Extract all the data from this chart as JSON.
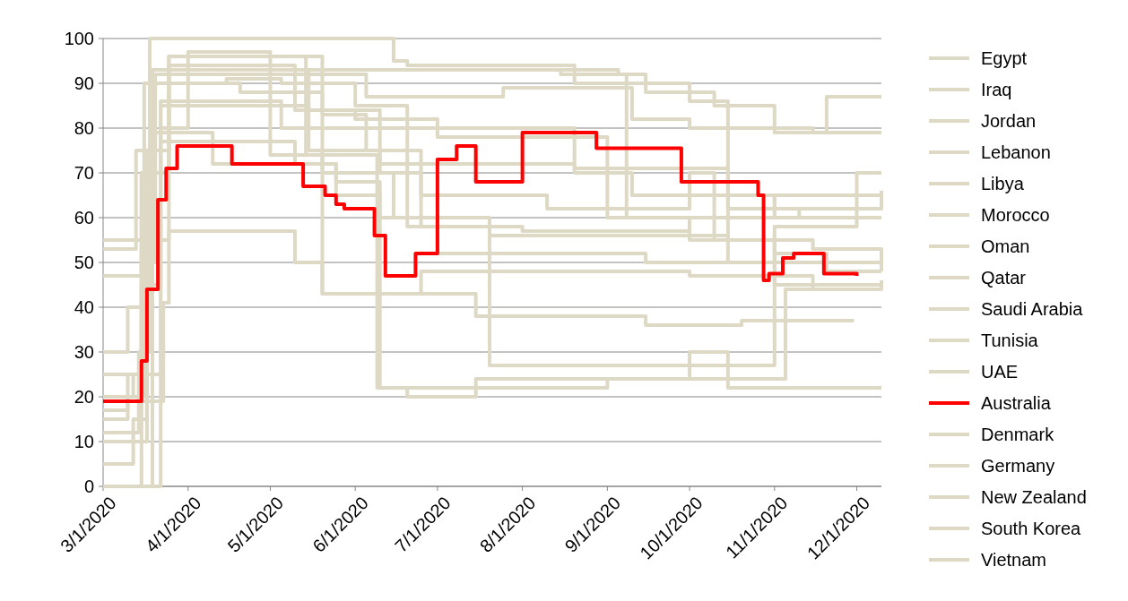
{
  "chart_data": {
    "type": "step",
    "xlim": [
      "2020-03-01",
      "2020-12-10"
    ],
    "ylim": [
      0,
      100
    ],
    "yticks": [
      0,
      10,
      20,
      30,
      40,
      50,
      60,
      70,
      80,
      90,
      100
    ],
    "xticks": [
      {
        "value": "2020-03-01",
        "label": "3/1/2020"
      },
      {
        "value": "2020-04-01",
        "label": "4/1/2020"
      },
      {
        "value": "2020-05-01",
        "label": "5/1/2020"
      },
      {
        "value": "2020-06-01",
        "label": "6/1/2020"
      },
      {
        "value": "2020-07-01",
        "label": "7/1/2020"
      },
      {
        "value": "2020-08-01",
        "label": "8/1/2020"
      },
      {
        "value": "2020-09-01",
        "label": "9/1/2020"
      },
      {
        "value": "2020-10-01",
        "label": "10/1/2020"
      },
      {
        "value": "2020-11-01",
        "label": "11/1/2020"
      },
      {
        "value": "2020-12-01",
        "label": "12/1/2020"
      }
    ],
    "grid": "y",
    "legend": "right",
    "marker": "none",
    "line_style": "solid",
    "series": [
      {
        "name": "Egypt",
        "color": "#ddd9c4",
        "x": [
          "2020-03-01",
          "2020-03-20",
          "2020-03-22",
          "2020-04-10",
          "2020-05-15",
          "2020-06-10",
          "2020-07-05",
          "2020-08-20",
          "2020-09-10",
          "2020-10-15",
          "2020-11-10",
          "2020-12-10"
        ],
        "values": [
          0,
          0,
          85,
          85,
          84,
          72,
          72,
          70,
          65,
          62,
          60,
          60
        ]
      },
      {
        "name": "Iraq",
        "color": "#ddd9c4",
        "x": [
          "2020-03-01",
          "2020-03-10",
          "2020-03-15",
          "2020-03-20",
          "2020-04-20",
          "2020-05-20",
          "2020-07-15",
          "2020-08-15",
          "2020-09-15",
          "2020-10-10",
          "2020-11-01",
          "2020-11-20",
          "2020-12-10"
        ],
        "values": [
          25,
          25,
          50,
          92,
          92,
          93,
          93,
          92,
          88,
          85,
          79,
          87,
          87
        ]
      },
      {
        "name": "Jordan",
        "color": "#ddd9c4",
        "x": [
          "2020-03-01",
          "2020-03-14",
          "2020-03-18",
          "2020-05-10",
          "2020-06-15",
          "2020-06-20",
          "2020-08-20",
          "2020-10-01",
          "2020-10-15",
          "2020-11-01",
          "2020-12-10"
        ],
        "values": [
          12,
          30,
          100,
          100,
          95,
          94,
          90,
          86,
          65,
          62,
          66
        ]
      },
      {
        "name": "Lebanon",
        "color": "#ddd9c4",
        "x": [
          "2020-03-01",
          "2020-03-10",
          "2020-03-15",
          "2020-03-22",
          "2020-04-25",
          "2020-05-05",
          "2020-06-05",
          "2020-06-25",
          "2020-07-20",
          "2020-09-20",
          "2020-10-15",
          "2020-11-20",
          "2020-12-10"
        ],
        "values": [
          20,
          20,
          45,
          86,
          86,
          80,
          75,
          58,
          56,
          56,
          50,
          48,
          48
        ]
      },
      {
        "name": "Libya",
        "color": "#ddd9c4",
        "x": [
          "2020-03-01",
          "2020-03-12",
          "2020-03-15",
          "2020-03-20",
          "2020-04-15",
          "2020-05-05",
          "2020-06-01",
          "2020-06-20",
          "2020-07-10",
          "2020-08-01",
          "2020-09-01",
          "2020-10-01",
          "2020-11-01",
          "2020-12-10"
        ],
        "values": [
          0,
          0,
          60,
          90,
          91,
          90,
          85,
          58,
          58,
          57,
          57,
          60,
          65,
          65
        ]
      },
      {
        "name": "Morocco",
        "color": "#ddd9c4",
        "x": [
          "2020-03-01",
          "2020-03-15",
          "2020-03-19",
          "2020-05-15",
          "2020-08-01",
          "2020-09-05",
          "2020-09-08",
          "2020-10-15",
          "2020-12-10"
        ],
        "values": [
          0,
          0,
          93,
          93,
          93,
          92,
          60,
          60,
          60
        ]
      },
      {
        "name": "Oman",
        "color": "#ddd9c4",
        "x": [
          "2020-03-01",
          "2020-03-12",
          "2020-03-17",
          "2020-03-25",
          "2020-04-10",
          "2020-05-10",
          "2020-06-01",
          "2020-07-01",
          "2020-08-15",
          "2020-09-01",
          "2020-10-01",
          "2020-11-01",
          "2020-12-10"
        ],
        "values": [
          5,
          10,
          70,
          94,
          94,
          84,
          82,
          78,
          78,
          60,
          55,
          45,
          45
        ]
      },
      {
        "name": "Qatar",
        "color": "#ddd9c4",
        "x": [
          "2020-03-01",
          "2020-03-10",
          "2020-03-16",
          "2020-03-25",
          "2020-05-01",
          "2020-05-20",
          "2020-06-05",
          "2020-08-05",
          "2020-08-20",
          "2020-09-15",
          "2020-10-15",
          "2020-11-01",
          "2020-11-20",
          "2020-12-10"
        ],
        "values": [
          15,
          20,
          75,
          92,
          92,
          83,
          80,
          80,
          71,
          71,
          55,
          52,
          50,
          50
        ]
      },
      {
        "name": "Saudi Arabia",
        "color": "#ddd9c4",
        "x": [
          "2020-03-01",
          "2020-03-10",
          "2020-03-16",
          "2020-03-25",
          "2020-04-25",
          "2020-05-20",
          "2020-06-05",
          "2020-07-25",
          "2020-08-25",
          "2020-09-10",
          "2020-10-01",
          "2020-11-15",
          "2020-12-10"
        ],
        "values": [
          30,
          40,
          90,
          96,
          96,
          92,
          87,
          89,
          89,
          82,
          80,
          79,
          79
        ]
      },
      {
        "name": "Tunisia",
        "color": "#ddd9c4",
        "x": [
          "2020-03-01",
          "2020-03-12",
          "2020-03-17",
          "2020-03-25",
          "2020-04-20",
          "2020-05-10",
          "2020-05-20",
          "2020-07-15",
          "2020-09-15",
          "2020-10-20",
          "2020-11-30"
        ],
        "values": [
          10,
          15,
          75,
          90,
          88,
          88,
          43,
          38,
          36,
          37,
          37
        ]
      },
      {
        "name": "UAE",
        "color": "#ddd9c4",
        "x": [
          "2020-03-01",
          "2020-03-10",
          "2020-03-15",
          "2020-03-25",
          "2020-04-20",
          "2020-05-15",
          "2020-06-10",
          "2020-06-25",
          "2020-08-10",
          "2020-10-01",
          "2020-10-10",
          "2020-11-15",
          "2020-12-10"
        ],
        "values": [
          47,
          47,
          70,
          93,
          93,
          75,
          70,
          65,
          62,
          70,
          55,
          53,
          48
        ]
      },
      {
        "name": "Australia",
        "color": "#ff0000",
        "x": [
          "2020-03-01",
          "2020-03-15",
          "2020-03-17",
          "2020-03-21",
          "2020-03-24",
          "2020-03-28",
          "2020-03-31",
          "2020-04-17",
          "2020-05-13",
          "2020-05-21",
          "2020-05-25",
          "2020-05-28",
          "2020-06-01",
          "2020-06-08",
          "2020-06-12",
          "2020-06-23",
          "2020-07-01",
          "2020-07-08",
          "2020-07-15",
          "2020-08-01",
          "2020-08-28",
          "2020-09-28",
          "2020-10-26",
          "2020-10-28",
          "2020-10-30",
          "2020-11-04",
          "2020-11-08",
          "2020-11-19",
          "2020-12-01"
        ],
        "values": [
          19,
          28,
          44,
          64,
          71,
          76,
          76,
          72,
          67,
          65,
          63,
          62,
          62,
          56,
          47,
          52,
          73,
          76,
          68,
          79,
          75.5,
          68,
          65,
          46,
          47.5,
          51,
          52,
          47.5,
          47
        ]
      },
      {
        "name": "Denmark",
        "color": "#ddd9c4",
        "x": [
          "2020-03-01",
          "2020-03-11",
          "2020-03-13",
          "2020-03-20",
          "2020-04-10",
          "2020-05-25",
          "2020-06-10",
          "2020-09-01",
          "2020-10-01",
          "2020-10-15",
          "2020-12-10"
        ],
        "values": [
          53,
          53,
          75,
          79,
          72,
          68,
          22,
          24,
          30,
          22,
          22
        ]
      },
      {
        "name": "Germany",
        "color": "#ddd9c4",
        "x": [
          "2020-03-01",
          "2020-03-12",
          "2020-03-15",
          "2020-03-22",
          "2020-04-20",
          "2020-05-10",
          "2020-05-25",
          "2020-06-10",
          "2020-07-01",
          "2020-09-15",
          "2020-11-01",
          "2020-12-01",
          "2020-12-10"
        ],
        "values": [
          20,
          25,
          70,
          77,
          77,
          72,
          65,
          60,
          52,
          50,
          58,
          70,
          70
        ]
      },
      {
        "name": "New Zealand",
        "color": "#ddd9c4",
        "x": [
          "2020-03-01",
          "2020-03-18",
          "2020-03-23",
          "2020-03-25",
          "2020-05-10",
          "2020-05-14",
          "2020-06-09",
          "2020-06-20",
          "2020-07-12",
          "2020-07-15",
          "2020-10-20",
          "2020-11-05",
          "2020-12-10"
        ],
        "values": [
          19,
          19,
          41,
          96,
          96,
          74,
          22,
          20,
          20,
          24,
          24,
          44,
          46
        ]
      },
      {
        "name": "South Korea",
        "color": "#ddd9c4",
        "x": [
          "2020-03-01",
          "2020-03-10",
          "2020-03-25",
          "2020-04-20",
          "2020-05-10",
          "2020-05-20",
          "2020-06-25",
          "2020-09-10",
          "2020-10-01",
          "2020-11-15",
          "2020-12-10"
        ],
        "values": [
          55,
          55,
          57,
          57,
          50,
          43,
          48,
          48,
          47,
          44,
          44
        ]
      },
      {
        "name": "Vietnam",
        "color": "#ddd9c4",
        "x": [
          "2020-03-01",
          "2020-03-10",
          "2020-03-22",
          "2020-04-01",
          "2020-04-20",
          "2020-05-01",
          "2020-05-20",
          "2020-06-15",
          "2020-07-20",
          "2020-10-10",
          "2020-11-01",
          "2020-12-01",
          "2020-12-10"
        ],
        "values": [
          17,
          25,
          80,
          97,
          97,
          74,
          70,
          60,
          27,
          27,
          50,
          50,
          49
        ]
      }
    ]
  }
}
